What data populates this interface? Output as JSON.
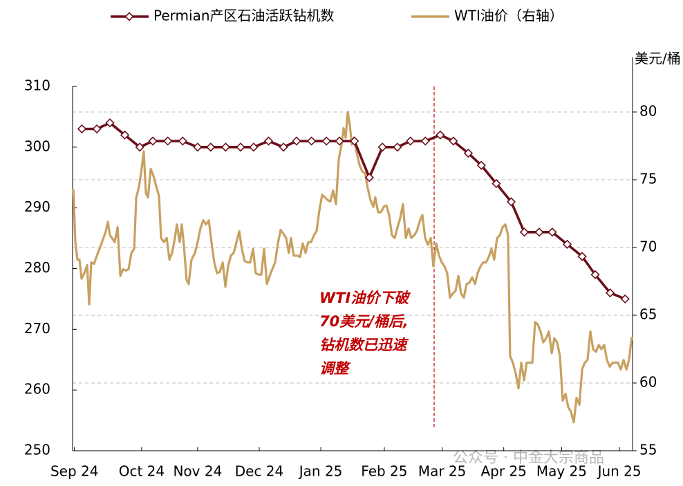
{
  "chart_data": {
    "type": "line",
    "y_unit_label": "美元/桶",
    "xlim": [
      0,
      300
    ],
    "xticks": [
      {
        "value": 1,
        "label": "Sep 24"
      },
      {
        "value": 37,
        "label": "Oct 24"
      },
      {
        "value": 67,
        "label": "Nov 24"
      },
      {
        "value": 100,
        "label": "Dec 24"
      },
      {
        "value": 133,
        "label": "Jan 25"
      },
      {
        "value": 167,
        "label": "Feb 25"
      },
      {
        "value": 198,
        "label": "Mar 25"
      },
      {
        "value": 231,
        "label": "Apr 25"
      },
      {
        "value": 262,
        "label": "May 25"
      },
      {
        "value": 293,
        "label": "Jun 25"
      }
    ],
    "ylim": [
      250,
      310
    ],
    "yticks": [
      250,
      260,
      270,
      280,
      290,
      300,
      310
    ],
    "y2lim": [
      55,
      82
    ],
    "y2ticks": [
      55,
      60,
      65,
      70,
      75,
      80
    ],
    "grid": true,
    "legend": "top",
    "vline_x": 193.7,
    "annotation": [
      "WTI油价下破",
      "70美元/桶后,",
      "钻机数已迅速",
      "调整"
    ],
    "watermark": "公众号 · 中金大宗商品",
    "series": [
      {
        "name": "Permian产区石油活跃钻机数",
        "color": "#6b0f1a",
        "axis": "y",
        "marker": "diamond",
        "x": [
          5,
          13,
          20,
          28,
          36,
          43,
          51,
          59,
          67,
          74,
          82,
          90,
          97,
          105,
          113,
          120,
          128,
          136,
          143,
          151,
          159,
          166,
          174,
          181,
          189,
          197,
          204,
          212,
          219,
          227,
          235,
          242,
          250,
          257,
          265,
          273,
          280,
          288,
          296
        ],
        "values": [
          303,
          303,
          304,
          302,
          300,
          301,
          301,
          301,
          300,
          300,
          300,
          300,
          300,
          301,
          300,
          301,
          301,
          301,
          301,
          301,
          295,
          300,
          300,
          301,
          301,
          302,
          301,
          299,
          297,
          294,
          291,
          286,
          286,
          286,
          284,
          282,
          279,
          276,
          275
        ]
      },
      {
        "name": "WTI油价（右轴）",
        "color": "#c8a060",
        "axis": "y2",
        "x": [
          0.4,
          1.5,
          2.6,
          3.7,
          4.8,
          6.3,
          7.8,
          8.9,
          10.0,
          11.5,
          13.0,
          14.4,
          16.3,
          17.8,
          18.9,
          20.0,
          21.1,
          22.6,
          24.1,
          25.6,
          27.0,
          28.5,
          30.0,
          31.5,
          33.0,
          34.1,
          35.6,
          37.0,
          38.1,
          39.3,
          40.4,
          41.9,
          43.3,
          44.8,
          46.3,
          47.4,
          48.9,
          50.4,
          51.9,
          53.3,
          54.8,
          55.9,
          57.4,
          58.5,
          59.6,
          61.1,
          62.2,
          63.7,
          65.6,
          67.0,
          68.5,
          70.0,
          71.5,
          73.0,
          74.4,
          75.9,
          77.4,
          78.9,
          80.4,
          81.9,
          83.3,
          84.8,
          86.3,
          87.8,
          89.3,
          90.7,
          92.2,
          93.7,
          95.2,
          96.7,
          98.1,
          99.6,
          101.1,
          102.6,
          104.1,
          105.6,
          107.0,
          108.5,
          110.0,
          111.5,
          113.0,
          114.4,
          115.9,
          117.0,
          118.5,
          120.4,
          121.9,
          123.3,
          124.8,
          126.3,
          127.8,
          129.3,
          130.7,
          132.2,
          133.7,
          135.2,
          136.7,
          138.1,
          139.6,
          141.1,
          142.6,
          144.1,
          145.2,
          146.3,
          147.4,
          148.5,
          149.6,
          150.7,
          152.2,
          153.7,
          155.2,
          156.7,
          158.1,
          159.6,
          161.1,
          162.2,
          163.7,
          165.2,
          166.7,
          168.1,
          169.6,
          171.1,
          172.6,
          174.1,
          175.6,
          177.0,
          178.5,
          180.0,
          181.5,
          183.0,
          184.4,
          185.9,
          187.4,
          188.9,
          190.4,
          191.9,
          193.3,
          194.8,
          196.3,
          197.8,
          199.3,
          200.7,
          202.2,
          203.7,
          205.2,
          206.7,
          208.1,
          209.6,
          211.1,
          212.6,
          214.1,
          215.6,
          217.0,
          218.5,
          220.0,
          221.5,
          223.0,
          224.4,
          225.9,
          227.4,
          228.9,
          230.4,
          231.9,
          233.3,
          234.4,
          235.9,
          237.4,
          238.9,
          240.4,
          241.9,
          243.3,
          244.8,
          246.3,
          247.8,
          249.3,
          250.7,
          252.2,
          253.7,
          255.2,
          256.7,
          258.1,
          259.6,
          261.1,
          262.6,
          264.1,
          265.6,
          267.0,
          268.5,
          270.0,
          271.5,
          273.0,
          274.4,
          275.9,
          277.4,
          278.9,
          280.4,
          281.9,
          283.3,
          284.8,
          286.3,
          287.8,
          289.3,
          290.7,
          292.2,
          293.7,
          295.2,
          296.7,
          298.1,
          299.6
        ],
        "values": [
          74.3,
          70.4,
          69.1,
          69.1,
          67.7,
          68.1,
          68.7,
          65.8,
          68.9,
          68.8,
          69.4,
          69.9,
          70.6,
          71.2,
          71.9,
          70.9,
          70.7,
          70.4,
          71.5,
          67.9,
          68.4,
          68.3,
          68.4,
          69.6,
          69.9,
          73.7,
          74.5,
          75.8,
          77.1,
          74.0,
          73.7,
          75.8,
          75.3,
          74.5,
          73.8,
          70.7,
          70.4,
          70.7,
          69.1,
          69.6,
          70.7,
          71.7,
          70.4,
          71.7,
          70.2,
          67.6,
          67.3,
          69.1,
          69.6,
          70.4,
          71.4,
          72.0,
          71.7,
          72.0,
          70.4,
          68.9,
          68.1,
          68.2,
          68.9,
          67.1,
          68.6,
          69.4,
          69.6,
          70.4,
          71.2,
          69.9,
          69.0,
          68.9,
          68.9,
          69.9,
          68.1,
          68.0,
          68.0,
          69.9,
          67.3,
          67.9,
          68.4,
          68.9,
          70.3,
          71.3,
          71.0,
          70.7,
          69.6,
          70.7,
          69.4,
          69.4,
          69.3,
          70.3,
          69.6,
          70.4,
          70.4,
          70.9,
          71.2,
          72.7,
          73.9,
          73.7,
          73.5,
          73.4,
          74.2,
          73.2,
          76.5,
          77.6,
          78.8,
          78.1,
          80.0,
          79.1,
          77.6,
          78.1,
          77.0,
          76.1,
          75.6,
          75.5,
          74.4,
          73.5,
          73.0,
          73.7,
          72.6,
          72.6,
          73.0,
          73.1,
          72.4,
          70.9,
          70.7,
          71.5,
          72.2,
          73.2,
          70.7,
          71.4,
          70.7,
          70.9,
          71.2,
          71.9,
          72.4,
          70.7,
          70.2,
          70.7,
          68.6,
          70.3,
          69.4,
          68.9,
          68.6,
          68.1,
          66.3,
          66.6,
          66.8,
          67.9,
          66.6,
          66.3,
          67.3,
          67.4,
          67.8,
          67.3,
          68.1,
          68.6,
          68.9,
          68.9,
          69.3,
          69.9,
          69.1,
          70.7,
          70.9,
          71.5,
          71.7,
          70.9,
          62.0,
          61.5,
          60.7,
          59.6,
          61.5,
          60.2,
          61.5,
          61.5,
          61.5,
          64.5,
          64.3,
          63.8,
          63.0,
          63.3,
          63.8,
          62.2,
          63.3,
          63.0,
          62.0,
          58.7,
          59.2,
          58.2,
          57.9,
          57.1,
          58.9,
          58.4,
          61.0,
          61.5,
          61.7,
          63.8,
          62.5,
          62.3,
          62.8,
          62.5,
          62.8,
          61.7,
          61.2,
          61.5,
          61.5,
          61.5,
          61.0,
          61.7,
          61.0,
          61.7,
          63.4
        ]
      }
    ]
  }
}
